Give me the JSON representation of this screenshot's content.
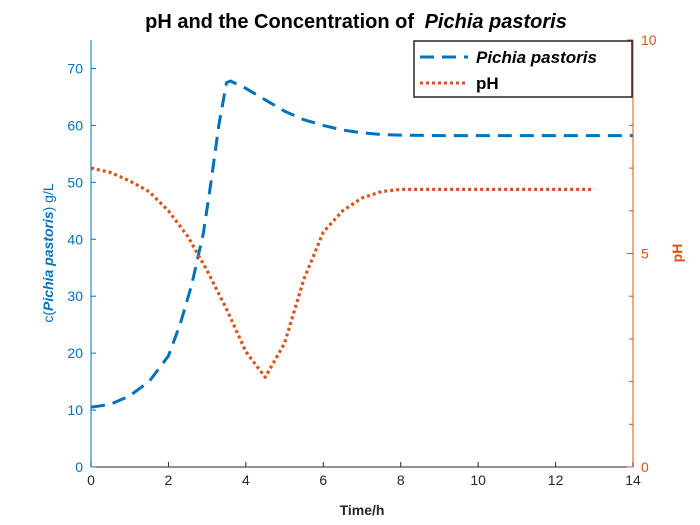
{
  "chart_data": {
    "type": "line",
    "title": "pH and the Concentration of",
    "title_italic": "Pichia pastoris",
    "xlabel": "Time/h",
    "ylabel_left_prefix": "c(",
    "ylabel_left_italic": "Pichia pastoris",
    "ylabel_left_suffix": ") g/L",
    "ylabel_right": "pH",
    "xlim": [
      0,
      14
    ],
    "ylim_left": [
      0,
      75
    ],
    "ylim_right": [
      0,
      10
    ],
    "xticks": [
      "0",
      "2",
      "4",
      "6",
      "8",
      "10",
      "12",
      "14"
    ],
    "yticks_left": [
      "0",
      "10",
      "20",
      "30",
      "40",
      "50",
      "60",
      "70"
    ],
    "yticks_right": [
      "0",
      "5",
      "10"
    ],
    "legend_position": "top-right",
    "colors": {
      "left": "#0072BD",
      "right": "#D95319"
    },
    "series": [
      {
        "name": "Pichia pastoris",
        "axis": "left",
        "style": "dashed",
        "color": "#0072BD",
        "x": [
          0,
          0.5,
          1,
          1.5,
          2,
          2.3,
          2.6,
          2.9,
          3.1,
          3.3,
          3.5,
          3.6,
          4,
          4.5,
          5,
          5.5,
          6,
          6.5,
          7,
          7.5,
          8,
          9,
          10,
          11,
          12,
          13,
          14
        ],
        "y": [
          10.5,
          11,
          12.5,
          15,
          19.5,
          25,
          32,
          41,
          50,
          60,
          67.5,
          67.8,
          66.5,
          64.5,
          62.5,
          61,
          60,
          59.2,
          58.7,
          58.4,
          58.3,
          58.2,
          58.2,
          58.2,
          58.2,
          58.2,
          58.2
        ]
      },
      {
        "name": "pH",
        "axis": "right",
        "style": "dotted",
        "color": "#D95319",
        "x": [
          0,
          0.5,
          1,
          1.5,
          2,
          2.5,
          3,
          3.5,
          4,
          4.5,
          5,
          5.5,
          6,
          6.5,
          7,
          7.5,
          8,
          9,
          10,
          11,
          12,
          13
        ],
        "y": [
          7,
          6.9,
          6.7,
          6.45,
          6.0,
          5.4,
          4.6,
          3.7,
          2.7,
          2.1,
          2.9,
          4.4,
          5.5,
          6.0,
          6.3,
          6.45,
          6.5,
          6.5,
          6.5,
          6.5,
          6.5,
          6.5
        ]
      }
    ]
  }
}
